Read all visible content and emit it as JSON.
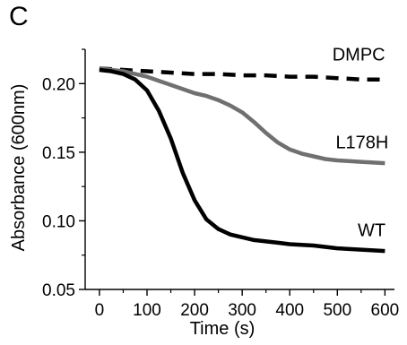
{
  "panel_label": "C",
  "chart_data": {
    "type": "line",
    "title": "",
    "xlabel": "Time (s)",
    "ylabel": "Absorbance (600nm)",
    "xlim": [
      -30,
      620
    ],
    "ylim": [
      0.05,
      0.225
    ],
    "xticks": [
      0,
      100,
      200,
      300,
      400,
      500,
      600
    ],
    "xtick_labels": [
      "0",
      "100",
      "200",
      "300",
      "400",
      "500",
      "600"
    ],
    "yticks": [
      0.05,
      0.1,
      0.15,
      0.2
    ],
    "ytick_labels": [
      "0.05",
      "0.10",
      "0.15",
      "0.20"
    ],
    "grid": false,
    "series": [
      {
        "name": "DMPC",
        "color": "#000000",
        "style": "dashed",
        "x": [
          0,
          50,
          100,
          150,
          200,
          250,
          300,
          350,
          400,
          450,
          500,
          550,
          600
        ],
        "y": [
          0.211,
          0.21,
          0.209,
          0.208,
          0.207,
          0.207,
          0.206,
          0.206,
          0.205,
          0.205,
          0.204,
          0.203,
          0.203
        ]
      },
      {
        "name": "L178H",
        "color": "#707070",
        "style": "solid",
        "x": [
          0,
          25,
          50,
          75,
          100,
          125,
          150,
          175,
          200,
          225,
          250,
          275,
          300,
          325,
          350,
          375,
          400,
          425,
          450,
          475,
          500,
          550,
          600
        ],
        "y": [
          0.211,
          0.21,
          0.209,
          0.207,
          0.205,
          0.202,
          0.199,
          0.196,
          0.193,
          0.191,
          0.188,
          0.184,
          0.179,
          0.172,
          0.164,
          0.157,
          0.152,
          0.149,
          0.147,
          0.145,
          0.144,
          0.143,
          0.142
        ]
      },
      {
        "name": "WT",
        "color": "#000000",
        "style": "solid",
        "x": [
          0,
          25,
          50,
          75,
          100,
          125,
          150,
          175,
          200,
          225,
          250,
          275,
          300,
          325,
          350,
          375,
          400,
          450,
          500,
          550,
          600
        ],
        "y": [
          0.21,
          0.209,
          0.207,
          0.203,
          0.195,
          0.18,
          0.16,
          0.135,
          0.115,
          0.101,
          0.094,
          0.09,
          0.088,
          0.086,
          0.085,
          0.084,
          0.083,
          0.082,
          0.08,
          0.079,
          0.078
        ]
      }
    ],
    "series_label_positions": {
      "DMPC": [
        545,
        0.217
      ],
      "L178H": [
        552,
        0.153
      ],
      "WT": [
        572,
        0.089
      ]
    }
  }
}
